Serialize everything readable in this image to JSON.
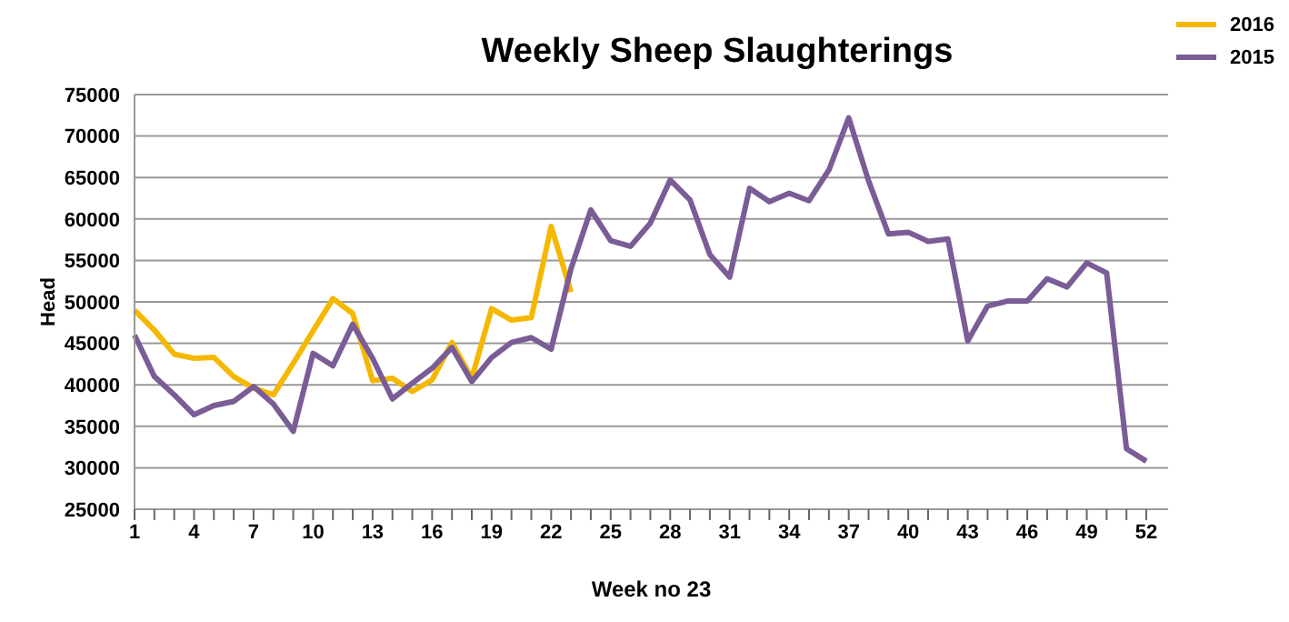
{
  "chart_data": {
    "type": "line",
    "title": "Weekly Sheep Slaughterings",
    "xlabel": "Week no 23",
    "ylabel": "Head",
    "categories": [
      "1",
      null,
      null,
      "4",
      null,
      null,
      "7",
      null,
      null,
      "10",
      null,
      null,
      "13",
      null,
      null,
      "16",
      null,
      null,
      "19",
      null,
      null,
      "22",
      null,
      null,
      "25",
      null,
      null,
      "28",
      null,
      null,
      "31",
      null,
      null,
      "34",
      null,
      null,
      "37",
      null,
      null,
      "40",
      null,
      null,
      "43",
      null,
      null,
      "46",
      null,
      null,
      "49",
      null,
      null,
      "52"
    ],
    "series": [
      {
        "name": "2016",
        "color": "#f5b800",
        "values": [
          49000,
          46600,
          43700,
          43200,
          43300,
          41000,
          39600,
          38800,
          42600,
          46500,
          50400,
          48600,
          40500,
          40800,
          39200,
          40600,
          45100,
          40800,
          49200,
          47800,
          48100,
          59100,
          51200,
          null,
          null,
          null,
          null,
          null,
          null,
          null,
          null,
          null,
          null,
          null,
          null,
          null,
          null,
          null,
          null,
          null,
          null,
          null,
          null,
          null,
          null,
          null,
          null,
          null,
          null,
          null,
          null,
          null
        ]
      },
      {
        "name": "2015",
        "color": "#7a5c96",
        "values": [
          46000,
          41000,
          38800,
          36400,
          37500,
          38000,
          39800,
          37700,
          34400,
          43800,
          42300,
          47300,
          43200,
          38300,
          40200,
          42000,
          44500,
          40400,
          43300,
          45100,
          45700,
          44300,
          54000,
          61100,
          57400,
          56700,
          59500,
          64700,
          62300,
          55700,
          53000,
          63700,
          62100,
          63100,
          62200,
          65900,
          72200,
          64600,
          58200,
          58400,
          57300,
          57600,
          45300,
          49500,
          50100,
          50100,
          52800,
          51800,
          54700,
          53500,
          32300,
          30800
        ]
      }
    ],
    "ylim": [
      25000,
      75000
    ],
    "yticks": [
      25000,
      30000,
      35000,
      40000,
      45000,
      50000,
      55000,
      60000,
      65000,
      70000,
      75000
    ],
    "grid": "y",
    "legend": "top right",
    "marker": "none",
    "line_style": "solid"
  }
}
